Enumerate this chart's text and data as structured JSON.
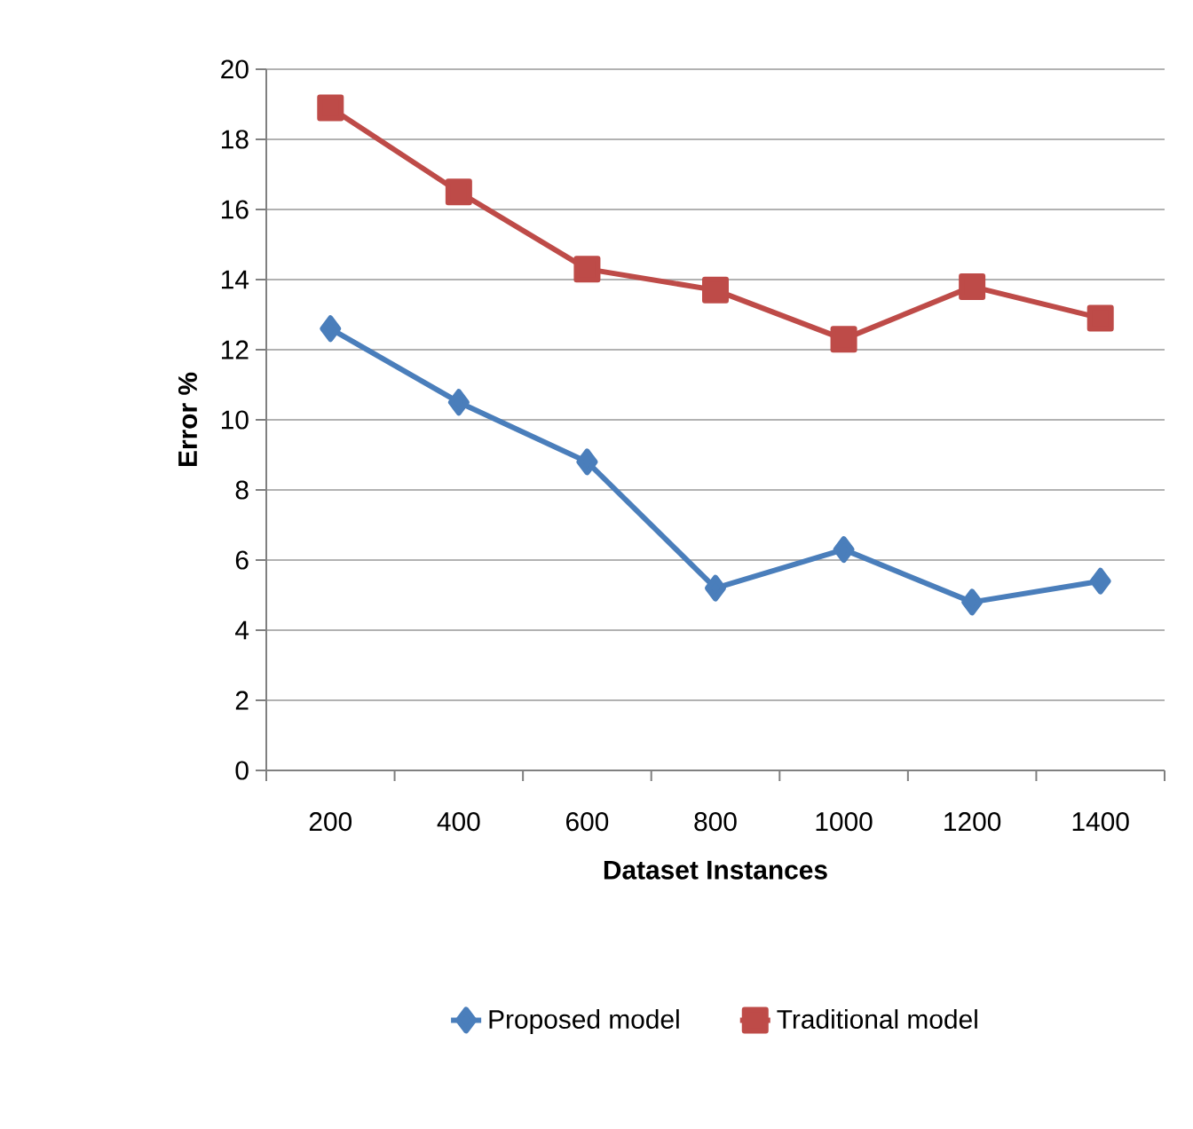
{
  "chart_data": {
    "type": "line",
    "xlabel": "Dataset Instances",
    "ylabel": "Error %",
    "categories": [
      "200",
      "400",
      "600",
      "800",
      "1000",
      "1200",
      "1400"
    ],
    "series": [
      {
        "name": "Proposed model",
        "color": "#4a7ebb",
        "marker": "diamond",
        "values": [
          12.6,
          10.5,
          8.8,
          5.2,
          6.3,
          4.8,
          5.4
        ]
      },
      {
        "name": "Traditional model",
        "color": "#be4b48",
        "marker": "square",
        "values": [
          18.9,
          16.5,
          14.3,
          13.7,
          12.3,
          13.8,
          12.9
        ]
      }
    ],
    "ylim": [
      0,
      20
    ],
    "yticks": [
      0,
      2,
      4,
      6,
      8,
      10,
      12,
      14,
      16,
      18,
      20
    ],
    "grid": "y",
    "legend": "bottom",
    "line_style": "solid"
  }
}
